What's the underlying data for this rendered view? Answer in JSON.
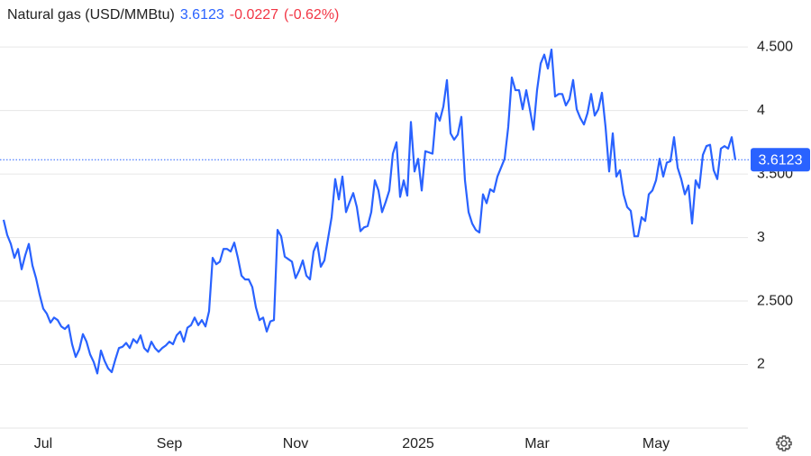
{
  "chart_data": {
    "type": "line",
    "title": "Natural gas (USD/MMBtu)",
    "change": "-0.0227",
    "change_percent": "(-0.62%)",
    "categories": [
      null,
      null,
      null,
      null,
      null,
      null,
      null,
      null,
      null,
      null,
      null,
      "Jul",
      null,
      null,
      null,
      null,
      null,
      null,
      null,
      null,
      null,
      null,
      null,
      null,
      null,
      null,
      null,
      null,
      null,
      null,
      null,
      null,
      null,
      null,
      null,
      null,
      null,
      null,
      null,
      null,
      null,
      null,
      null,
      null,
      null,
      null,
      "Sep",
      null,
      null,
      null,
      null,
      null,
      null,
      null,
      null,
      null,
      null,
      null,
      null,
      null,
      null,
      null,
      null,
      null,
      null,
      null,
      null,
      null,
      null,
      null,
      null,
      null,
      null,
      null,
      null,
      null,
      null,
      null,
      null,
      null,
      null,
      "Nov",
      null,
      null,
      null,
      null,
      null,
      null,
      null,
      null,
      null,
      null,
      null,
      null,
      null,
      null,
      null,
      null,
      null,
      null,
      null,
      null,
      null,
      null,
      null,
      null,
      null,
      null,
      null,
      null,
      null,
      null,
      null,
      null,
      null,
      "2025",
      null,
      null,
      null,
      null,
      null,
      null,
      null,
      null,
      null,
      null,
      null,
      null,
      null,
      null,
      null,
      null,
      null,
      null,
      null,
      null,
      null,
      null,
      null,
      null,
      null,
      null,
      null,
      null,
      null,
      null,
      null,
      null,
      "Mar",
      null,
      null,
      null,
      null,
      null,
      null,
      null,
      null,
      null,
      null,
      null,
      null,
      null,
      null,
      null,
      null,
      null,
      null,
      null,
      null,
      null,
      null,
      null,
      null,
      null,
      null,
      null,
      null,
      null,
      null,
      null,
      null,
      "May",
      null,
      null,
      null,
      null,
      null,
      null,
      null,
      null,
      null,
      null,
      null,
      null,
      null,
      null,
      null,
      null,
      null,
      null,
      null,
      null,
      null,
      null
    ],
    "series": [
      {
        "color": "#2962ff",
        "values": [
          3.14,
          3.02,
          2.95,
          2.84,
          2.91,
          2.75,
          2.86,
          2.95,
          2.78,
          2.68,
          2.55,
          2.44,
          2.4,
          2.33,
          2.37,
          2.35,
          2.3,
          2.28,
          2.31,
          2.16,
          2.06,
          2.12,
          2.24,
          2.18,
          2.08,
          2.02,
          1.93,
          2.11,
          2.03,
          1.97,
          1.94,
          2.04,
          2.13,
          2.14,
          2.17,
          2.13,
          2.2,
          2.17,
          2.23,
          2.13,
          2.1,
          2.18,
          2.13,
          2.1,
          2.13,
          2.15,
          2.18,
          2.16,
          2.23,
          2.26,
          2.18,
          2.29,
          2.31,
          2.37,
          2.31,
          2.35,
          2.3,
          2.42,
          2.84,
          2.79,
          2.81,
          2.91,
          2.91,
          2.89,
          2.96,
          2.84,
          2.7,
          2.67,
          2.67,
          2.61,
          2.45,
          2.35,
          2.37,
          2.26,
          2.34,
          2.35,
          3.06,
          3.01,
          2.85,
          2.83,
          2.81,
          2.68,
          2.74,
          2.82,
          2.7,
          2.67,
          2.89,
          2.96,
          2.77,
          2.82,
          2.99,
          3.16,
          3.46,
          3.3,
          3.48,
          3.2,
          3.28,
          3.35,
          3.24,
          3.05,
          3.08,
          3.09,
          3.2,
          3.45,
          3.37,
          3.2,
          3.28,
          3.37,
          3.66,
          3.75,
          3.32,
          3.45,
          3.33,
          3.91,
          3.52,
          3.62,
          3.37,
          3.68,
          3.67,
          3.66,
          3.98,
          3.92,
          4.03,
          4.24,
          3.82,
          3.77,
          3.81,
          3.95,
          3.45,
          3.2,
          3.11,
          3.06,
          3.04,
          3.34,
          3.27,
          3.38,
          3.36,
          3.48,
          3.55,
          3.62,
          3.87,
          4.26,
          4.16,
          4.16,
          4.01,
          4.16,
          4.01,
          3.85,
          4.16,
          4.37,
          4.44,
          4.33,
          4.48,
          4.11,
          4.13,
          4.13,
          4.04,
          4.09,
          4.24,
          4.01,
          3.94,
          3.89,
          3.98,
          4.13,
          3.96,
          4.01,
          4.14,
          3.87,
          3.52,
          3.82,
          3.48,
          3.53,
          3.34,
          3.24,
          3.21,
          3.01,
          3.01,
          3.16,
          3.13,
          3.34,
          3.37,
          3.45,
          3.62,
          3.48,
          3.59,
          3.6,
          3.79,
          3.55,
          3.46,
          3.34,
          3.41,
          3.11,
          3.45,
          3.39,
          3.65,
          3.72,
          3.73,
          3.53,
          3.46,
          3.7,
          3.72,
          3.7,
          3.79,
          3.6123
        ]
      }
    ],
    "ylim": [
      1.5,
      4.87
    ],
    "yticks": [
      2,
      {
        "value": 2.5,
        "label": "2.500"
      },
      3,
      {
        "value": 3.5,
        "label": "3.500"
      },
      4,
      {
        "value": 4.5,
        "label": "4.500"
      }
    ],
    "grid": true
  }
}
